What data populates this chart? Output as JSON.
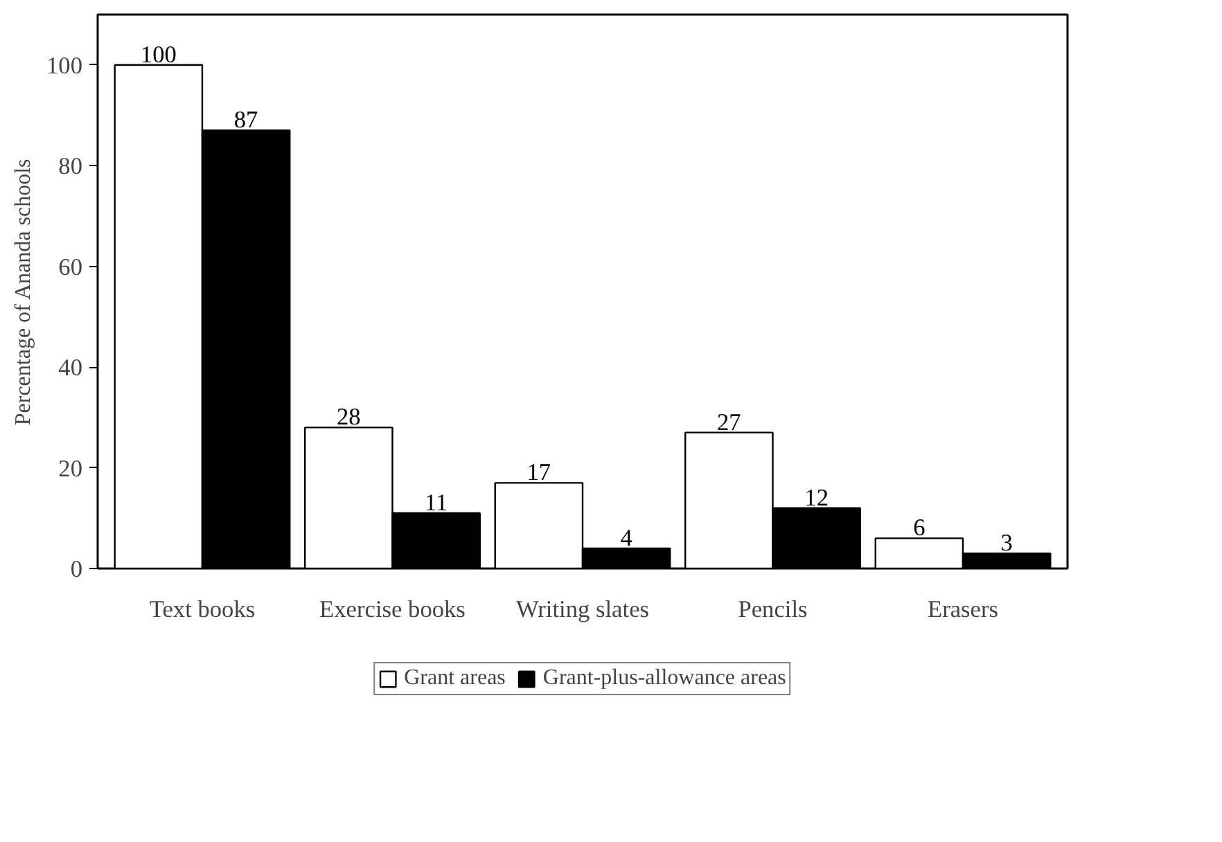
{
  "chart_data": {
    "type": "bar",
    "ylabel": "Percentage of Ananda schools",
    "categories": [
      "Text books",
      "Exercise books",
      "Writing slates",
      "Pencils",
      "Erasers"
    ],
    "series": [
      {
        "name": "Grant areas",
        "color": "#ffffff",
        "values": [
          100,
          28,
          17,
          27,
          6
        ]
      },
      {
        "name": "Grant-plus-allowance areas",
        "color": "#000000",
        "values": [
          87,
          11,
          4,
          12,
          3
        ]
      }
    ],
    "ylim": [
      0,
      110
    ],
    "yticks": [
      0,
      20,
      40,
      60,
      80,
      100
    ],
    "grid": false,
    "legend": "bottom",
    "data_labels": true
  }
}
